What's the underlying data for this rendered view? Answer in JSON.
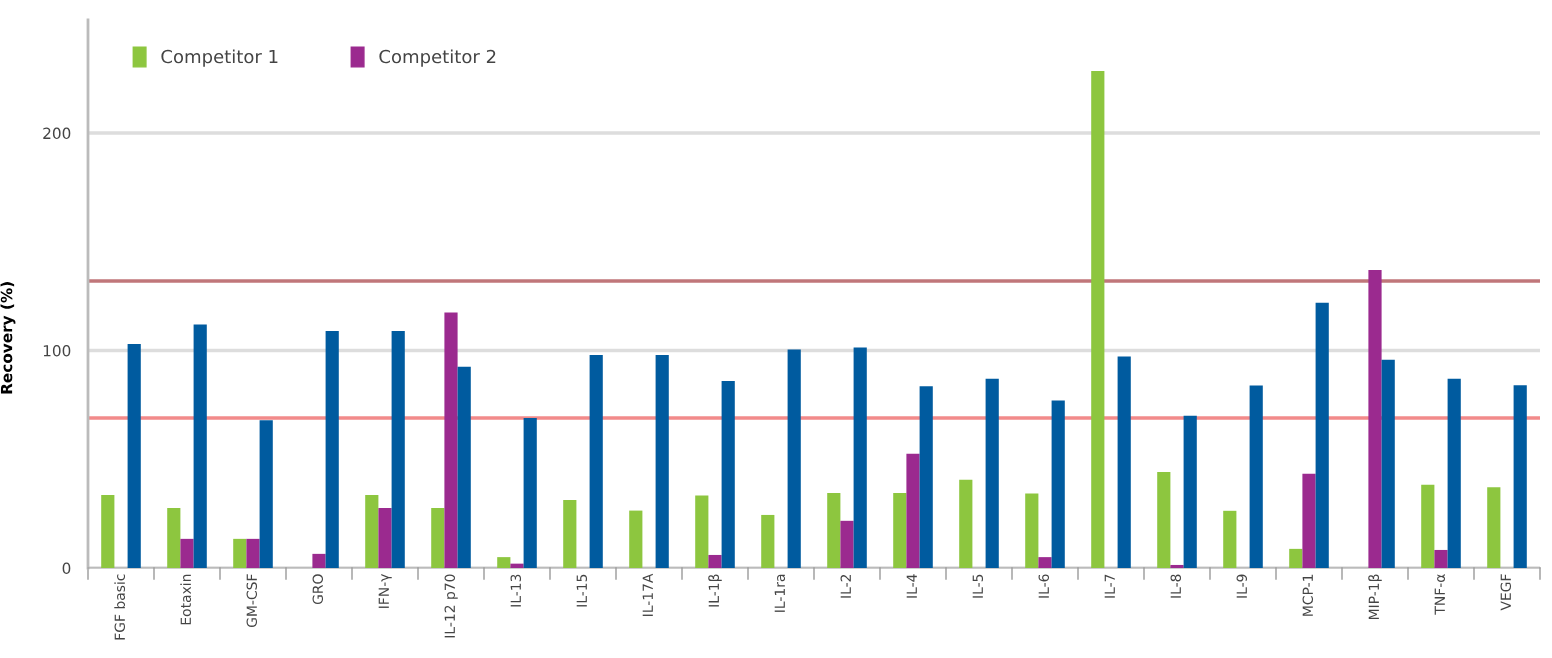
{
  "chart_data": {
    "type": "bar",
    "ylabel": "Recovery (%)",
    "categories": [
      "FGF basic",
      "Eotaxin",
      "GM-CSF",
      "GRO",
      "IFN-γ",
      "IL-12 p70",
      "IL-13",
      "IL-15",
      "IL-17A",
      "IL-1β",
      "IL-1ra",
      "IL-2",
      "IL-4",
      "IL-5",
      "IL-6",
      "IL-7",
      "IL-8",
      "IL-9",
      "MCP-1",
      "MIP-1β",
      "TNF-α",
      "VEGF"
    ],
    "series": [
      {
        "name": "Competitor 1",
        "color": "#8dc63f",
        "values": [
          33.6,
          27.6,
          13.4,
          null,
          33.6,
          27.6,
          5,
          31.3,
          26.4,
          33.3,
          24.4,
          34.5,
          34.5,
          40.6,
          34.3,
          228.6,
          44.2,
          26.3,
          8.8,
          null,
          38.3,
          37.1
        ]
      },
      {
        "name": "Competitor 2",
        "color": "#9b2a8f",
        "values": [
          null,
          13.4,
          13.4,
          6.5,
          27.6,
          117.5,
          2,
          null,
          null,
          6,
          null,
          21.7,
          52.5,
          null,
          5,
          null,
          1.4,
          null,
          43.3,
          137,
          8.3,
          null
        ]
      },
      {
        "color": "#005b9f",
        "values": [
          103,
          112,
          68,
          109,
          109,
          92.6,
          69,
          98,
          98,
          86,
          100.5,
          101.4,
          83.6,
          87,
          77,
          97.3,
          70,
          83.9,
          122,
          95.8,
          87,
          84
        ]
      }
    ],
    "ylim": [
      0,
      252
    ],
    "yticks": [
      0,
      100,
      200
    ],
    "grid": "y",
    "legend": "top left",
    "ref_lines": [
      {
        "axis": "y",
        "value": 132,
        "color": "#c0767a"
      },
      {
        "axis": "y",
        "value": 69,
        "color": "#f28a8a"
      }
    ]
  }
}
